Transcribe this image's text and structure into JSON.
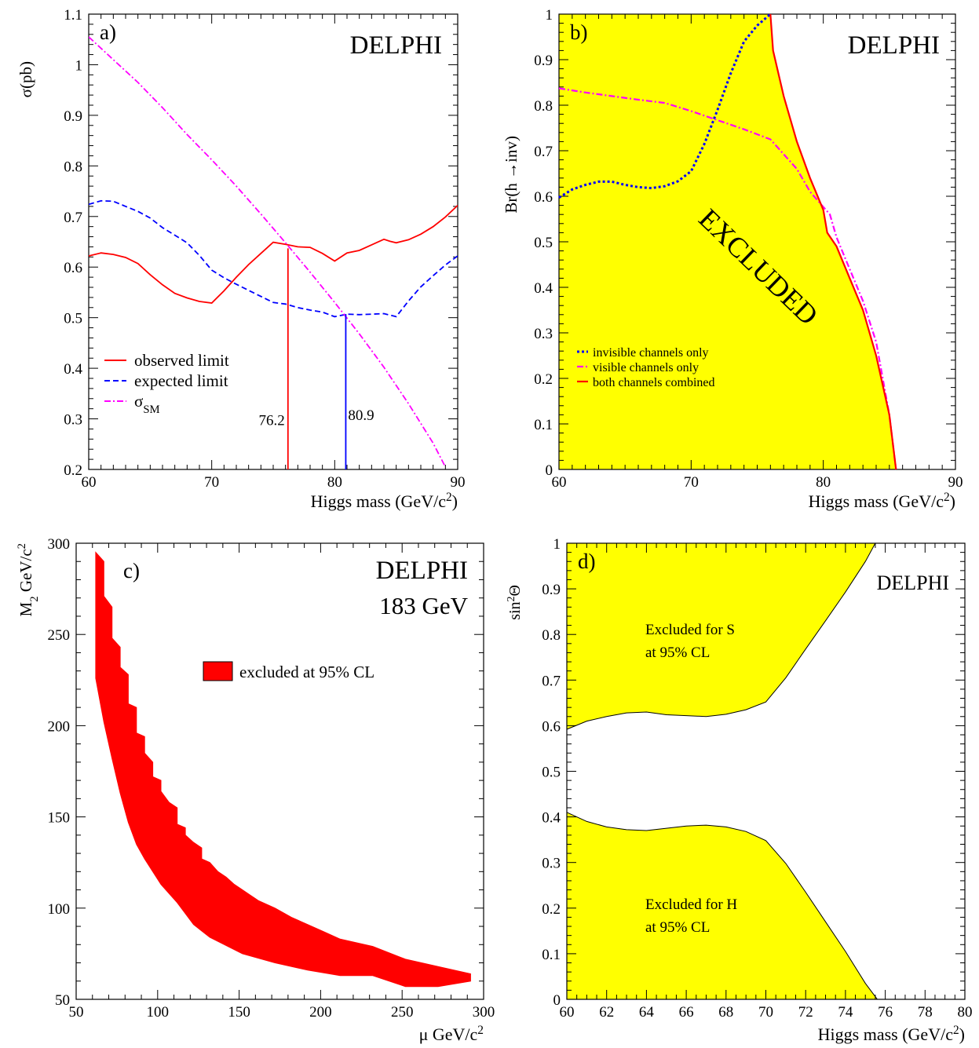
{
  "chart_data": [
    {
      "panel": "a)",
      "type": "line",
      "title": "DELPHI",
      "xlabel": "Higgs mass (GeV/c²)",
      "ylabel": "σ(pb)",
      "xlim": [
        60,
        90
      ],
      "ylim": [
        0.2,
        1.1
      ],
      "xticks": [
        60,
        70,
        80,
        90
      ],
      "yticks": [
        0.2,
        0.3,
        0.4,
        0.5,
        0.6,
        0.7,
        0.8,
        0.9,
        1,
        1.1
      ],
      "legend_position": "lower-left",
      "series": [
        {
          "name": "observed limit",
          "color": "#ff0000",
          "style": "solid",
          "points": [
            [
              60,
              0.622
            ],
            [
              61,
              0.628
            ],
            [
              62,
              0.625
            ],
            [
              63,
              0.619
            ],
            [
              64,
              0.607
            ],
            [
              65,
              0.585
            ],
            [
              66,
              0.565
            ],
            [
              67,
              0.548
            ],
            [
              68,
              0.539
            ],
            [
              69,
              0.532
            ],
            [
              70,
              0.529
            ],
            [
              71,
              0.553
            ],
            [
              72,
              0.58
            ],
            [
              73,
              0.605
            ],
            [
              74,
              0.627
            ],
            [
              75,
              0.649
            ],
            [
              76,
              0.645
            ],
            [
              77,
              0.64
            ],
            [
              78,
              0.639
            ],
            [
              79,
              0.627
            ],
            [
              80,
              0.612
            ],
            [
              81,
              0.628
            ],
            [
              82,
              0.633
            ],
            [
              83,
              0.644
            ],
            [
              84,
              0.655
            ],
            [
              84.5,
              0.651
            ],
            [
              85,
              0.648
            ],
            [
              86,
              0.654
            ],
            [
              87,
              0.665
            ],
            [
              88,
              0.68
            ],
            [
              89,
              0.699
            ],
            [
              90,
              0.722
            ]
          ]
        },
        {
          "name": "expected limit",
          "color": "#0000ff",
          "style": "dashed",
          "points": [
            [
              60,
              0.724
            ],
            [
              61,
              0.731
            ],
            [
              62,
              0.73
            ],
            [
              63,
              0.72
            ],
            [
              64,
              0.71
            ],
            [
              65,
              0.697
            ],
            [
              66,
              0.678
            ],
            [
              67,
              0.663
            ],
            [
              68,
              0.648
            ],
            [
              69,
              0.623
            ],
            [
              70,
              0.594
            ],
            [
              71,
              0.579
            ],
            [
              72,
              0.566
            ],
            [
              73,
              0.554
            ],
            [
              74,
              0.542
            ],
            [
              75,
              0.53
            ],
            [
              76,
              0.527
            ],
            [
              77,
              0.52
            ],
            [
              78,
              0.515
            ],
            [
              79,
              0.511
            ],
            [
              80,
              0.502
            ],
            [
              81,
              0.507
            ],
            [
              82,
              0.506
            ],
            [
              83,
              0.507
            ],
            [
              84,
              0.508
            ],
            [
              85,
              0.502
            ],
            [
              86,
              0.533
            ],
            [
              87,
              0.561
            ],
            [
              88,
              0.583
            ],
            [
              89,
              0.604
            ],
            [
              90,
              0.622
            ]
          ]
        },
        {
          "name": "σSM",
          "color": "#ff00ff",
          "style": "dashdot",
          "points": [
            [
              60,
              1.055
            ],
            [
              62,
              1.01
            ],
            [
              64,
              0.965
            ],
            [
              66,
              0.915
            ],
            [
              68,
              0.862
            ],
            [
              70,
              0.812
            ],
            [
              72,
              0.76
            ],
            [
              74,
              0.705
            ],
            [
              76,
              0.648
            ],
            [
              78,
              0.59
            ],
            [
              80,
              0.53
            ],
            [
              82,
              0.468
            ],
            [
              84,
              0.402
            ],
            [
              86,
              0.33
            ],
            [
              88,
              0.252
            ],
            [
              89,
              0.205
            ]
          ]
        }
      ],
      "markers": [
        {
          "label": "76.2",
          "x": 76.2,
          "y_top": 0.637,
          "color": "#ff0000"
        },
        {
          "label": "80.9",
          "x": 80.9,
          "y_top": 0.507,
          "color": "#0000ff"
        }
      ]
    },
    {
      "panel": "b)",
      "type": "area",
      "title": "DELPHI",
      "xlabel": "Higgs mass (GeV/c²)",
      "ylabel": "Br(h →inv)",
      "xlim": [
        60,
        90
      ],
      "ylim": [
        0,
        1
      ],
      "xticks": [
        60,
        70,
        80,
        90
      ],
      "yticks": [
        0,
        0.1,
        0.2,
        0.3,
        0.4,
        0.5,
        0.6,
        0.7,
        0.8,
        0.9,
        1
      ],
      "fill_color": "#ffff00",
      "region_label": "EXCLUDED",
      "legend_position": "lower-left",
      "series": [
        {
          "name": "invisible channels only",
          "color": "#0000ff",
          "style": "dotted",
          "points": [
            [
              60,
              0.597
            ],
            [
              61,
              0.615
            ],
            [
              62,
              0.625
            ],
            [
              63,
              0.632
            ],
            [
              64,
              0.632
            ],
            [
              65,
              0.625
            ],
            [
              66,
              0.62
            ],
            [
              67,
              0.618
            ],
            [
              68,
              0.622
            ],
            [
              69,
              0.633
            ],
            [
              70,
              0.655
            ],
            [
              71,
              0.715
            ],
            [
              72,
              0.79
            ],
            [
              73,
              0.87
            ],
            [
              74,
              0.94
            ],
            [
              75,
              0.975
            ],
            [
              76,
              1.0
            ]
          ]
        },
        {
          "name": "visible channels only",
          "color": "#ff00ff",
          "style": "dashdot",
          "points": [
            [
              60,
              0.837
            ],
            [
              62,
              0.828
            ],
            [
              64,
              0.82
            ],
            [
              66,
              0.812
            ],
            [
              68,
              0.805
            ],
            [
              70,
              0.787
            ],
            [
              72,
              0.767
            ],
            [
              74,
              0.747
            ],
            [
              76,
              0.725
            ],
            [
              78,
              0.66
            ],
            [
              79,
              0.61
            ],
            [
              80.5,
              0.56
            ],
            [
              81,
              0.51
            ],
            [
              82,
              0.44
            ],
            [
              83,
              0.37
            ],
            [
              84,
              0.28
            ],
            [
              85,
              0.12
            ],
            [
              85.5,
              0.0
            ]
          ]
        },
        {
          "name": "both channels combined",
          "color": "#ff0000",
          "style": "solid",
          "points": [
            [
              76,
              1.0
            ],
            [
              76.2,
              0.92
            ],
            [
              77,
              0.82
            ],
            [
              78,
              0.72
            ],
            [
              79,
              0.64
            ],
            [
              80,
              0.57
            ],
            [
              80.3,
              0.52
            ],
            [
              81,
              0.49
            ],
            [
              82,
              0.42
            ],
            [
              83,
              0.35
            ],
            [
              84,
              0.25
            ],
            [
              85,
              0.12
            ],
            [
              85.5,
              0.0
            ]
          ]
        }
      ]
    },
    {
      "panel": "c)",
      "type": "area",
      "title": "DELPHI",
      "subtitle": "183 GeV",
      "xlabel": "μ GeV/c²",
      "ylabel": "M2 GeV/c²",
      "xlim": [
        50,
        300
      ],
      "ylim": [
        50,
        300
      ],
      "xticks": [
        50,
        100,
        150,
        200,
        250,
        300
      ],
      "yticks": [
        50,
        100,
        150,
        200,
        250,
        300
      ],
      "fill_color": "#ff0000",
      "legend_position": "upper-right",
      "legend": "excluded at 95% CL",
      "region_outline": [
        [
          62,
          295
        ],
        [
          67,
          290
        ],
        [
          67,
          271
        ],
        [
          72,
          265
        ],
        [
          72,
          248
        ],
        [
          77,
          243
        ],
        [
          77,
          232
        ],
        [
          82,
          228
        ],
        [
          82,
          212
        ],
        [
          87,
          210
        ],
        [
          87,
          196
        ],
        [
          92,
          194
        ],
        [
          92,
          185
        ],
        [
          97,
          180
        ],
        [
          97,
          172
        ],
        [
          102,
          170
        ],
        [
          102,
          164
        ],
        [
          107,
          158
        ],
        [
          112,
          155
        ],
        [
          112,
          146
        ],
        [
          117,
          144
        ],
        [
          117,
          140
        ],
        [
          122,
          136
        ],
        [
          127,
          133
        ],
        [
          127,
          127
        ],
        [
          132,
          125
        ],
        [
          137,
          120
        ],
        [
          142,
          117
        ],
        [
          147,
          113
        ],
        [
          152,
          110
        ],
        [
          157,
          107
        ],
        [
          162,
          104
        ],
        [
          172,
          100
        ],
        [
          182,
          95
        ],
        [
          192,
          91
        ],
        [
          202,
          87
        ],
        [
          212,
          83
        ],
        [
          232,
          79
        ],
        [
          252,
          72
        ],
        [
          272,
          68
        ],
        [
          292,
          64
        ],
        [
          292,
          60
        ],
        [
          272,
          57
        ],
        [
          252,
          57
        ],
        [
          232,
          63
        ],
        [
          212,
          63
        ],
        [
          192,
          66
        ],
        [
          172,
          70
        ],
        [
          152,
          75
        ],
        [
          132,
          84
        ],
        [
          122,
          91
        ],
        [
          112,
          103
        ],
        [
          102,
          113
        ],
        [
          97,
          120
        ],
        [
          92,
          127
        ],
        [
          87,
          135
        ],
        [
          82,
          147
        ],
        [
          77,
          163
        ],
        [
          72,
          182
        ],
        [
          67,
          202
        ],
        [
          62,
          226
        ]
      ]
    },
    {
      "panel": "d)",
      "type": "area",
      "title": "DELPHI",
      "xlabel": "Higgs mass (GeV/c²)",
      "ylabel": "sin²Θ",
      "xlim": [
        60,
        80
      ],
      "ylim": [
        0,
        1
      ],
      "xticks": [
        60,
        62,
        64,
        66,
        68,
        70,
        72,
        74,
        76,
        78,
        80
      ],
      "yticks": [
        0,
        0.1,
        0.2,
        0.3,
        0.4,
        0.5,
        0.6,
        0.7,
        0.8,
        0.9,
        1
      ],
      "fill_color": "#ffff00",
      "regions": [
        {
          "label_line1": "Excluded for S",
          "label_line2": "at 95% CL",
          "boundary": [
            [
              60,
              0.592
            ],
            [
              61,
              0.61
            ],
            [
              62,
              0.62
            ],
            [
              63,
              0.628
            ],
            [
              64,
              0.63
            ],
            [
              65,
              0.624
            ],
            [
              66,
              0.622
            ],
            [
              67,
              0.62
            ],
            [
              68,
              0.625
            ],
            [
              69,
              0.635
            ],
            [
              70,
              0.652
            ],
            [
              71,
              0.705
            ],
            [
              72,
              0.768
            ],
            [
              73,
              0.83
            ],
            [
              74,
              0.893
            ],
            [
              75,
              0.96
            ],
            [
              75.5,
              1.0
            ]
          ]
        },
        {
          "label_line1": "Excluded for H",
          "label_line2": "at 95% CL",
          "boundary": [
            [
              60,
              0.41
            ],
            [
              61,
              0.39
            ],
            [
              62,
              0.378
            ],
            [
              63,
              0.372
            ],
            [
              64,
              0.37
            ],
            [
              65,
              0.375
            ],
            [
              66,
              0.38
            ],
            [
              67,
              0.382
            ],
            [
              68,
              0.378
            ],
            [
              69,
              0.368
            ],
            [
              70,
              0.348
            ],
            [
              71,
              0.298
            ],
            [
              72,
              0.235
            ],
            [
              73,
              0.17
            ],
            [
              74,
              0.105
            ],
            [
              75,
              0.035
            ],
            [
              75.6,
              0.0
            ]
          ]
        }
      ]
    }
  ]
}
